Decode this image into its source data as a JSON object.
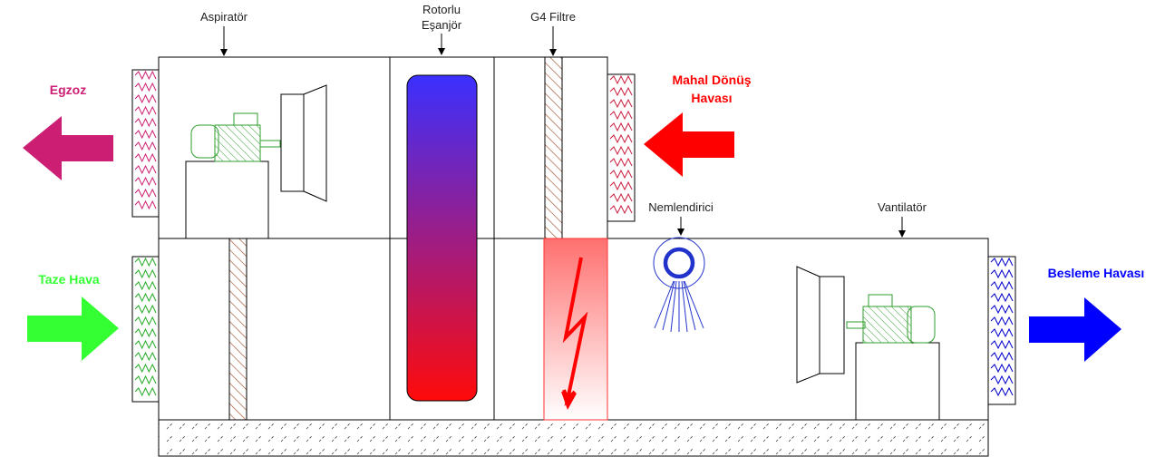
{
  "labels": {
    "aspirator": "Aspiratör",
    "rotor_line1": "Rotorlu",
    "rotor_line2": "Eşanjör",
    "filter": "G4 Filtre",
    "humidifier": "Nemlendirici",
    "fan": "Vantilatör"
  },
  "flows": {
    "exhaust": {
      "label": "Egzoz",
      "color": "#cc1f73"
    },
    "return_line1": "Mahal Dönüş",
    "return_line2": "Havası",
    "return_color": "#ff0000",
    "fresh": {
      "label": "Taze Hava",
      "color": "#33ff33"
    },
    "supply": {
      "label": "Besleme Havası",
      "color": "#0000ff"
    }
  },
  "colors": {
    "exchanger_top": "#3b30ff",
    "exchanger_bottom": "#ff0a0a",
    "heater": "#ff3333",
    "motor": "#2e9e2e",
    "filter_hatch": "#a0522d",
    "damper_exhaust": "#cc1f73",
    "damper_return": "#cc1f3f",
    "damper_fresh": "#22aa22",
    "damper_supply": "#0000cc"
  },
  "icons": [
    "arrow-left-icon",
    "arrow-right-icon",
    "motor-icon",
    "fan-icon",
    "spray-nozzle-icon",
    "heater-bolt-icon"
  ]
}
